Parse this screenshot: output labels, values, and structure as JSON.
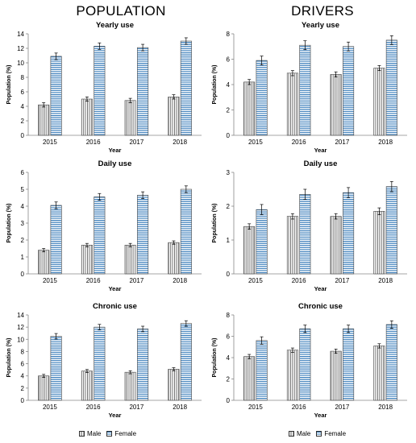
{
  "headers": {
    "left": "POPULATION",
    "right": "DRIVERS"
  },
  "legends": [
    {
      "male": "Male",
      "female": "Female"
    },
    {
      "male": "Male",
      "female": "Female"
    }
  ],
  "colors": {
    "female_stripes": "#2e75b6",
    "male_stripes": "#555555",
    "axis": "#888888",
    "error_bars": "#000000"
  },
  "chart_data": [
    {
      "type": "bar",
      "title": "Yearly use",
      "xlabel": "Year",
      "ylabel": "Population (%)",
      "categories": [
        "2015",
        "2016",
        "2017",
        "2018"
      ],
      "ylim": [
        0,
        14
      ],
      "yticks": [
        0,
        2,
        4,
        6,
        8,
        10,
        12,
        14
      ],
      "series": [
        {
          "name": "Male",
          "values": [
            4.2,
            5.0,
            4.8,
            5.3
          ],
          "errors": [
            0.3,
            0.3,
            0.3,
            0.3
          ]
        },
        {
          "name": "Female",
          "values": [
            10.9,
            12.3,
            12.1,
            13.0
          ],
          "errors": [
            0.45,
            0.45,
            0.45,
            0.45
          ]
        }
      ]
    },
    {
      "type": "bar",
      "title": "Yearly use",
      "xlabel": "Year",
      "ylabel": "Population (%)",
      "categories": [
        "2015",
        "2016",
        "2017",
        "2018"
      ],
      "ylim": [
        0,
        8
      ],
      "yticks": [
        0,
        2,
        4,
        6,
        8
      ],
      "series": [
        {
          "name": "Male",
          "values": [
            4.2,
            4.9,
            4.8,
            5.3
          ],
          "errors": [
            0.2,
            0.2,
            0.2,
            0.2
          ]
        },
        {
          "name": "Female",
          "values": [
            5.9,
            7.1,
            7.0,
            7.5
          ],
          "errors": [
            0.35,
            0.35,
            0.35,
            0.35
          ]
        }
      ]
    },
    {
      "type": "bar",
      "title": "Daily use",
      "xlabel": "Year",
      "ylabel": "Population (%)",
      "categories": [
        "2015",
        "2016",
        "2017",
        "2018"
      ],
      "ylim": [
        0,
        6
      ],
      "yticks": [
        0,
        1,
        2,
        3,
        4,
        5,
        6
      ],
      "series": [
        {
          "name": "Male",
          "values": [
            1.4,
            1.7,
            1.7,
            1.85
          ],
          "errors": [
            0.1,
            0.1,
            0.1,
            0.1
          ]
        },
        {
          "name": "Female",
          "values": [
            4.05,
            4.55,
            4.65,
            5.0
          ],
          "errors": [
            0.2,
            0.2,
            0.2,
            0.2
          ]
        }
      ]
    },
    {
      "type": "bar",
      "title": "Daily use",
      "xlabel": "Year",
      "ylabel": "Population (%)",
      "categories": [
        "2015",
        "2016",
        "2017",
        "2018"
      ],
      "ylim": [
        0,
        3
      ],
      "yticks": [
        0,
        1,
        2,
        3
      ],
      "series": [
        {
          "name": "Male",
          "values": [
            1.4,
            1.7,
            1.7,
            1.85
          ],
          "errors": [
            0.08,
            0.08,
            0.08,
            0.1
          ]
        },
        {
          "name": "Female",
          "values": [
            1.9,
            2.35,
            2.4,
            2.58
          ],
          "errors": [
            0.15,
            0.15,
            0.15,
            0.15
          ]
        }
      ]
    },
    {
      "type": "bar",
      "title": "Chronic use",
      "xlabel": "Year",
      "ylabel": "Population (%)",
      "categories": [
        "2015",
        "2016",
        "2017",
        "2018"
      ],
      "ylim": [
        0,
        14
      ],
      "yticks": [
        0,
        2,
        4,
        6,
        8,
        10,
        12,
        14
      ],
      "series": [
        {
          "name": "Male",
          "values": [
            4.0,
            4.8,
            4.6,
            5.1
          ],
          "errors": [
            0.25,
            0.25,
            0.25,
            0.25
          ]
        },
        {
          "name": "Female",
          "values": [
            10.5,
            12.0,
            11.7,
            12.6
          ],
          "errors": [
            0.45,
            0.45,
            0.45,
            0.45
          ]
        }
      ]
    },
    {
      "type": "bar",
      "title": "Chronic use",
      "xlabel": "Year",
      "ylabel": "Population (%)",
      "categories": [
        "2015",
        "2016",
        "2017",
        "2018"
      ],
      "ylim": [
        0,
        8
      ],
      "yticks": [
        0,
        2,
        4,
        6,
        8
      ],
      "series": [
        {
          "name": "Male",
          "values": [
            4.1,
            4.7,
            4.6,
            5.1
          ],
          "errors": [
            0.2,
            0.2,
            0.2,
            0.2
          ]
        },
        {
          "name": "Female",
          "values": [
            5.6,
            6.7,
            6.7,
            7.1
          ],
          "errors": [
            0.35,
            0.35,
            0.35,
            0.35
          ]
        }
      ]
    }
  ]
}
